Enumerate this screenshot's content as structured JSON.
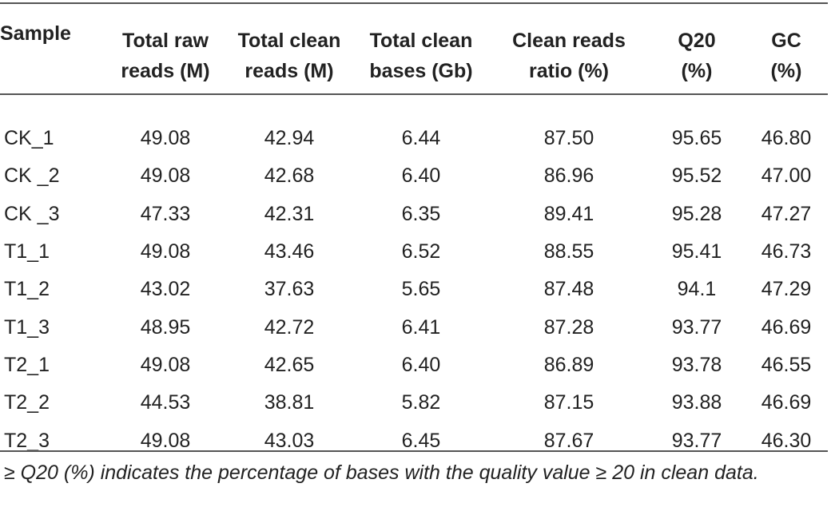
{
  "table": {
    "headers": [
      {
        "line1": "Sample",
        "line2": ""
      },
      {
        "line1": "Total raw",
        "line2": "reads (M)"
      },
      {
        "line1": "Total clean",
        "line2": "reads (M)"
      },
      {
        "line1": "Total clean",
        "line2": "bases (Gb)"
      },
      {
        "line1": "Clean reads",
        "line2": "ratio (%)"
      },
      {
        "line1": "Q20",
        "line2": "(%)"
      },
      {
        "line1": "GC",
        "line2": "(%)"
      }
    ],
    "rows": [
      [
        "CK_1",
        "49.08",
        "42.94",
        "6.44",
        "87.50",
        "95.65",
        "46.80"
      ],
      [
        "CK _2",
        "49.08",
        "42.68",
        "6.40",
        "86.96",
        "95.52",
        "47.00"
      ],
      [
        "CK _3",
        "47.33",
        "42.31",
        "6.35",
        "89.41",
        "95.28",
        "47.27"
      ],
      [
        "T1_1",
        "49.08",
        "43.46",
        "6.52",
        "88.55",
        "95.41",
        "46.73"
      ],
      [
        "T1_2",
        "43.02",
        "37.63",
        "5.65",
        "87.48",
        "94.1",
        "47.29"
      ],
      [
        "T1_3",
        "48.95",
        "42.72",
        "6.41",
        "87.28",
        "93.77",
        "46.69"
      ],
      [
        "T2_1",
        "49.08",
        "42.65",
        "6.40",
        "86.89",
        "93.78",
        "46.55"
      ],
      [
        "T2_2",
        "44.53",
        "38.81",
        "5.82",
        "87.15",
        "93.88",
        "46.69"
      ],
      [
        "T2_3",
        "49.08",
        "43.03",
        "6.45",
        "87.67",
        "93.77",
        "46.30"
      ]
    ]
  },
  "footnote": "≥ Q20 (%) indicates the percentage of bases with the quality value ≥ 20 in clean data."
}
